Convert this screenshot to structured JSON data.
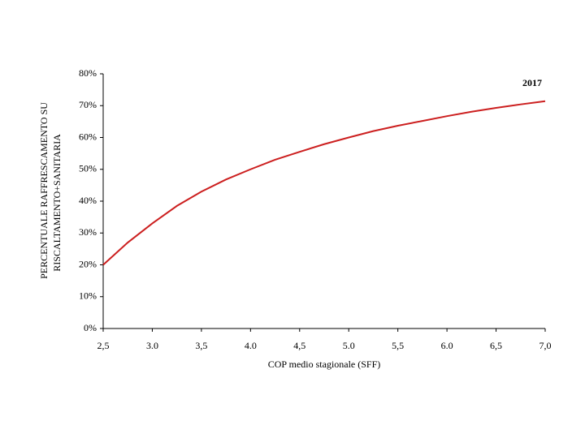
{
  "chart_data": {
    "type": "line",
    "y_label": [
      "PERCENTUALE RAFFRESCAMENTO SU",
      "RISCALTAMENTO+SANITARIA"
    ],
    "x_label": "COP medio stagionale (SFF)",
    "annotation": "2017",
    "x": [
      2.5,
      2.75,
      3.0,
      3.25,
      3.5,
      3.75,
      4.0,
      4.25,
      4.5,
      4.75,
      5.0,
      5.25,
      5.5,
      5.75,
      6.0,
      6.25,
      6.5,
      6.75,
      7.0
    ],
    "values": [
      20,
      27,
      33,
      38.5,
      43,
      46.8,
      50,
      53,
      55.5,
      57.9,
      60,
      62,
      63.7,
      65.2,
      66.7,
      68.1,
      69.3,
      70.4,
      71.4
    ],
    "color": "#cc1f1f",
    "xlim": [
      2.5,
      7.0
    ],
    "xticks": [
      {
        "value": 2.5,
        "label": "2,5"
      },
      {
        "value": 3.0,
        "label": "3.0"
      },
      {
        "value": 3.5,
        "label": "3,5"
      },
      {
        "value": 4.0,
        "label": "4.0"
      },
      {
        "value": 4.5,
        "label": "4,5"
      },
      {
        "value": 5.0,
        "label": "5.0"
      },
      {
        "value": 5.5,
        "label": "5,5"
      },
      {
        "value": 6.0,
        "label": "6.0"
      },
      {
        "value": 6.5,
        "label": "6,5"
      },
      {
        "value": 7.0,
        "label": "7,0"
      }
    ],
    "ylim": [
      0,
      80
    ],
    "yticks": [
      {
        "value": 0,
        "label": "0%"
      },
      {
        "value": 10,
        "label": "10%"
      },
      {
        "value": 20,
        "label": "20%"
      },
      {
        "value": 30,
        "label": "30%"
      },
      {
        "value": 40,
        "label": "40%"
      },
      {
        "value": 50,
        "label": "50%"
      },
      {
        "value": 60,
        "label": "60%"
      },
      {
        "value": 70,
        "label": "70%"
      },
      {
        "value": 80,
        "label": "80%"
      }
    ],
    "grid": false
  }
}
